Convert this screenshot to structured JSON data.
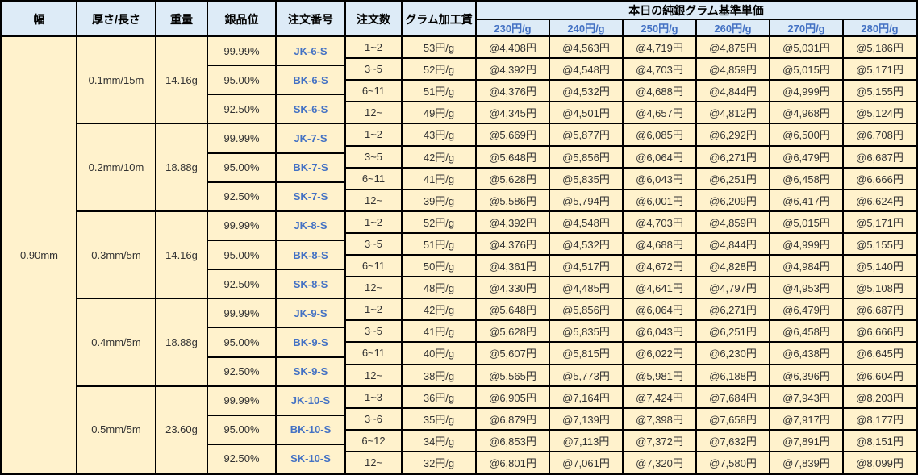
{
  "header": {
    "columns": [
      "幅",
      "厚さ/長さ",
      "重量",
      "銀品位",
      "注文番号",
      "注文数",
      "グラム加工賃"
    ],
    "price_group_title": "本日の純銀グラム基準単価",
    "price_columns": [
      "230円/g",
      "240円/g",
      "250円/g",
      "260円/g",
      "270円/g",
      "280円/g"
    ]
  },
  "width_value": "0.90mm",
  "groups": [
    {
      "thickness_length": "0.1mm/15m",
      "weight": "14.16g",
      "variants": [
        {
          "purity": "99.99%",
          "order_no": "JK-6-S"
        },
        {
          "purity": "95.00%",
          "order_no": "BK-6-S"
        },
        {
          "purity": "92.50%",
          "order_no": "SK-6-S"
        }
      ],
      "rows": [
        {
          "qty": "1~2",
          "fee": "53円/g",
          "prices": [
            "@4,408円",
            "@4,563円",
            "@4,719円",
            "@4,875円",
            "@5,031円",
            "@5,186円"
          ]
        },
        {
          "qty": "3~5",
          "fee": "52円/g",
          "prices": [
            "@4,392円",
            "@4,548円",
            "@4,703円",
            "@4,859円",
            "@5,015円",
            "@5,171円"
          ]
        },
        {
          "qty": "6~11",
          "fee": "51円/g",
          "prices": [
            "@4,376円",
            "@4,532円",
            "@4,688円",
            "@4,844円",
            "@4,999円",
            "@5,155円"
          ]
        },
        {
          "qty": "12~",
          "fee": "49円/g",
          "prices": [
            "@4,345円",
            "@4,501円",
            "@4,657円",
            "@4,812円",
            "@4,968円",
            "@5,124円"
          ]
        }
      ]
    },
    {
      "thickness_length": "0.2mm/10m",
      "weight": "18.88g",
      "variants": [
        {
          "purity": "99.99%",
          "order_no": "JK-7-S"
        },
        {
          "purity": "95.00%",
          "order_no": "BK-7-S"
        },
        {
          "purity": "92.50%",
          "order_no": "SK-7-S"
        }
      ],
      "rows": [
        {
          "qty": "1~2",
          "fee": "43円/g",
          "prices": [
            "@5,669円",
            "@5,877円",
            "@6,085円",
            "@6,292円",
            "@6,500円",
            "@6,708円"
          ]
        },
        {
          "qty": "3~5",
          "fee": "42円/g",
          "prices": [
            "@5,648円",
            "@5,856円",
            "@6,064円",
            "@6,271円",
            "@6,479円",
            "@6,687円"
          ]
        },
        {
          "qty": "6~11",
          "fee": "41円/g",
          "prices": [
            "@5,628円",
            "@5,835円",
            "@6,043円",
            "@6,251円",
            "@6,458円",
            "@6,666円"
          ]
        },
        {
          "qty": "12~",
          "fee": "39円/g",
          "prices": [
            "@5,586円",
            "@5,794円",
            "@6,001円",
            "@6,209円",
            "@6,417円",
            "@6,624円"
          ]
        }
      ]
    },
    {
      "thickness_length": "0.3mm/5m",
      "weight": "14.16g",
      "variants": [
        {
          "purity": "99.99%",
          "order_no": "JK-8-S"
        },
        {
          "purity": "95.00%",
          "order_no": "BK-8-S"
        },
        {
          "purity": "92.50%",
          "order_no": "SK-8-S"
        }
      ],
      "rows": [
        {
          "qty": "1~2",
          "fee": "52円/g",
          "prices": [
            "@4,392円",
            "@4,548円",
            "@4,703円",
            "@4,859円",
            "@5,015円",
            "@5,171円"
          ]
        },
        {
          "qty": "3~5",
          "fee": "51円/g",
          "prices": [
            "@4,376円",
            "@4,532円",
            "@4,688円",
            "@4,844円",
            "@4,999円",
            "@5,155円"
          ]
        },
        {
          "qty": "6~11",
          "fee": "50円/g",
          "prices": [
            "@4,361円",
            "@4,517円",
            "@4,672円",
            "@4,828円",
            "@4,984円",
            "@5,140円"
          ]
        },
        {
          "qty": "12~",
          "fee": "48円/g",
          "prices": [
            "@4,330円",
            "@4,485円",
            "@4,641円",
            "@4,797円",
            "@4,953円",
            "@5,108円"
          ]
        }
      ]
    },
    {
      "thickness_length": "0.4mm/5m",
      "weight": "18.88g",
      "variants": [
        {
          "purity": "99.99%",
          "order_no": "JK-9-S"
        },
        {
          "purity": "95.00%",
          "order_no": "BK-9-S"
        },
        {
          "purity": "92.50%",
          "order_no": "SK-9-S"
        }
      ],
      "rows": [
        {
          "qty": "1~2",
          "fee": "42円/g",
          "prices": [
            "@5,648円",
            "@5,856円",
            "@6,064円",
            "@6,271円",
            "@6,479円",
            "@6,687円"
          ]
        },
        {
          "qty": "3~5",
          "fee": "41円/g",
          "prices": [
            "@5,628円",
            "@5,835円",
            "@6,043円",
            "@6,251円",
            "@6,458円",
            "@6,666円"
          ]
        },
        {
          "qty": "6~11",
          "fee": "40円/g",
          "prices": [
            "@5,607円",
            "@5,815円",
            "@6,022円",
            "@6,230円",
            "@6,438円",
            "@6,645円"
          ]
        },
        {
          "qty": "12~",
          "fee": "38円/g",
          "prices": [
            "@5,565円",
            "@5,773円",
            "@5,981円",
            "@6,188円",
            "@6,396円",
            "@6,604円"
          ]
        }
      ]
    },
    {
      "thickness_length": "0.5mm/5m",
      "weight": "23.60g",
      "variants": [
        {
          "purity": "99.99%",
          "order_no": "JK-10-S"
        },
        {
          "purity": "95.00%",
          "order_no": "BK-10-S"
        },
        {
          "purity": "92.50%",
          "order_no": "SK-10-S"
        }
      ],
      "rows": [
        {
          "qty": "1~3",
          "fee": "36円/g",
          "prices": [
            "@6,905円",
            "@7,164円",
            "@7,424円",
            "@7,684円",
            "@7,943円",
            "@8,203円"
          ]
        },
        {
          "qty": "3~6",
          "fee": "35円/g",
          "prices": [
            "@6,879円",
            "@7,139円",
            "@7,398円",
            "@7,658円",
            "@7,917円",
            "@8,177円"
          ]
        },
        {
          "qty": "6~12",
          "fee": "34円/g",
          "prices": [
            "@6,853円",
            "@7,113円",
            "@7,372円",
            "@7,632円",
            "@7,891円",
            "@8,151円"
          ]
        },
        {
          "qty": "12~",
          "fee": "32円/g",
          "prices": [
            "@6,801円",
            "@7,061円",
            "@7,320円",
            "@7,580円",
            "@7,839円",
            "@8,099円"
          ]
        }
      ]
    }
  ],
  "colors": {
    "header_bg": "#DDEBF7",
    "body_bg": "#FFF2CC",
    "accent_blue_text": "#4472C4",
    "border": "#000000",
    "body_text": "#333333"
  }
}
